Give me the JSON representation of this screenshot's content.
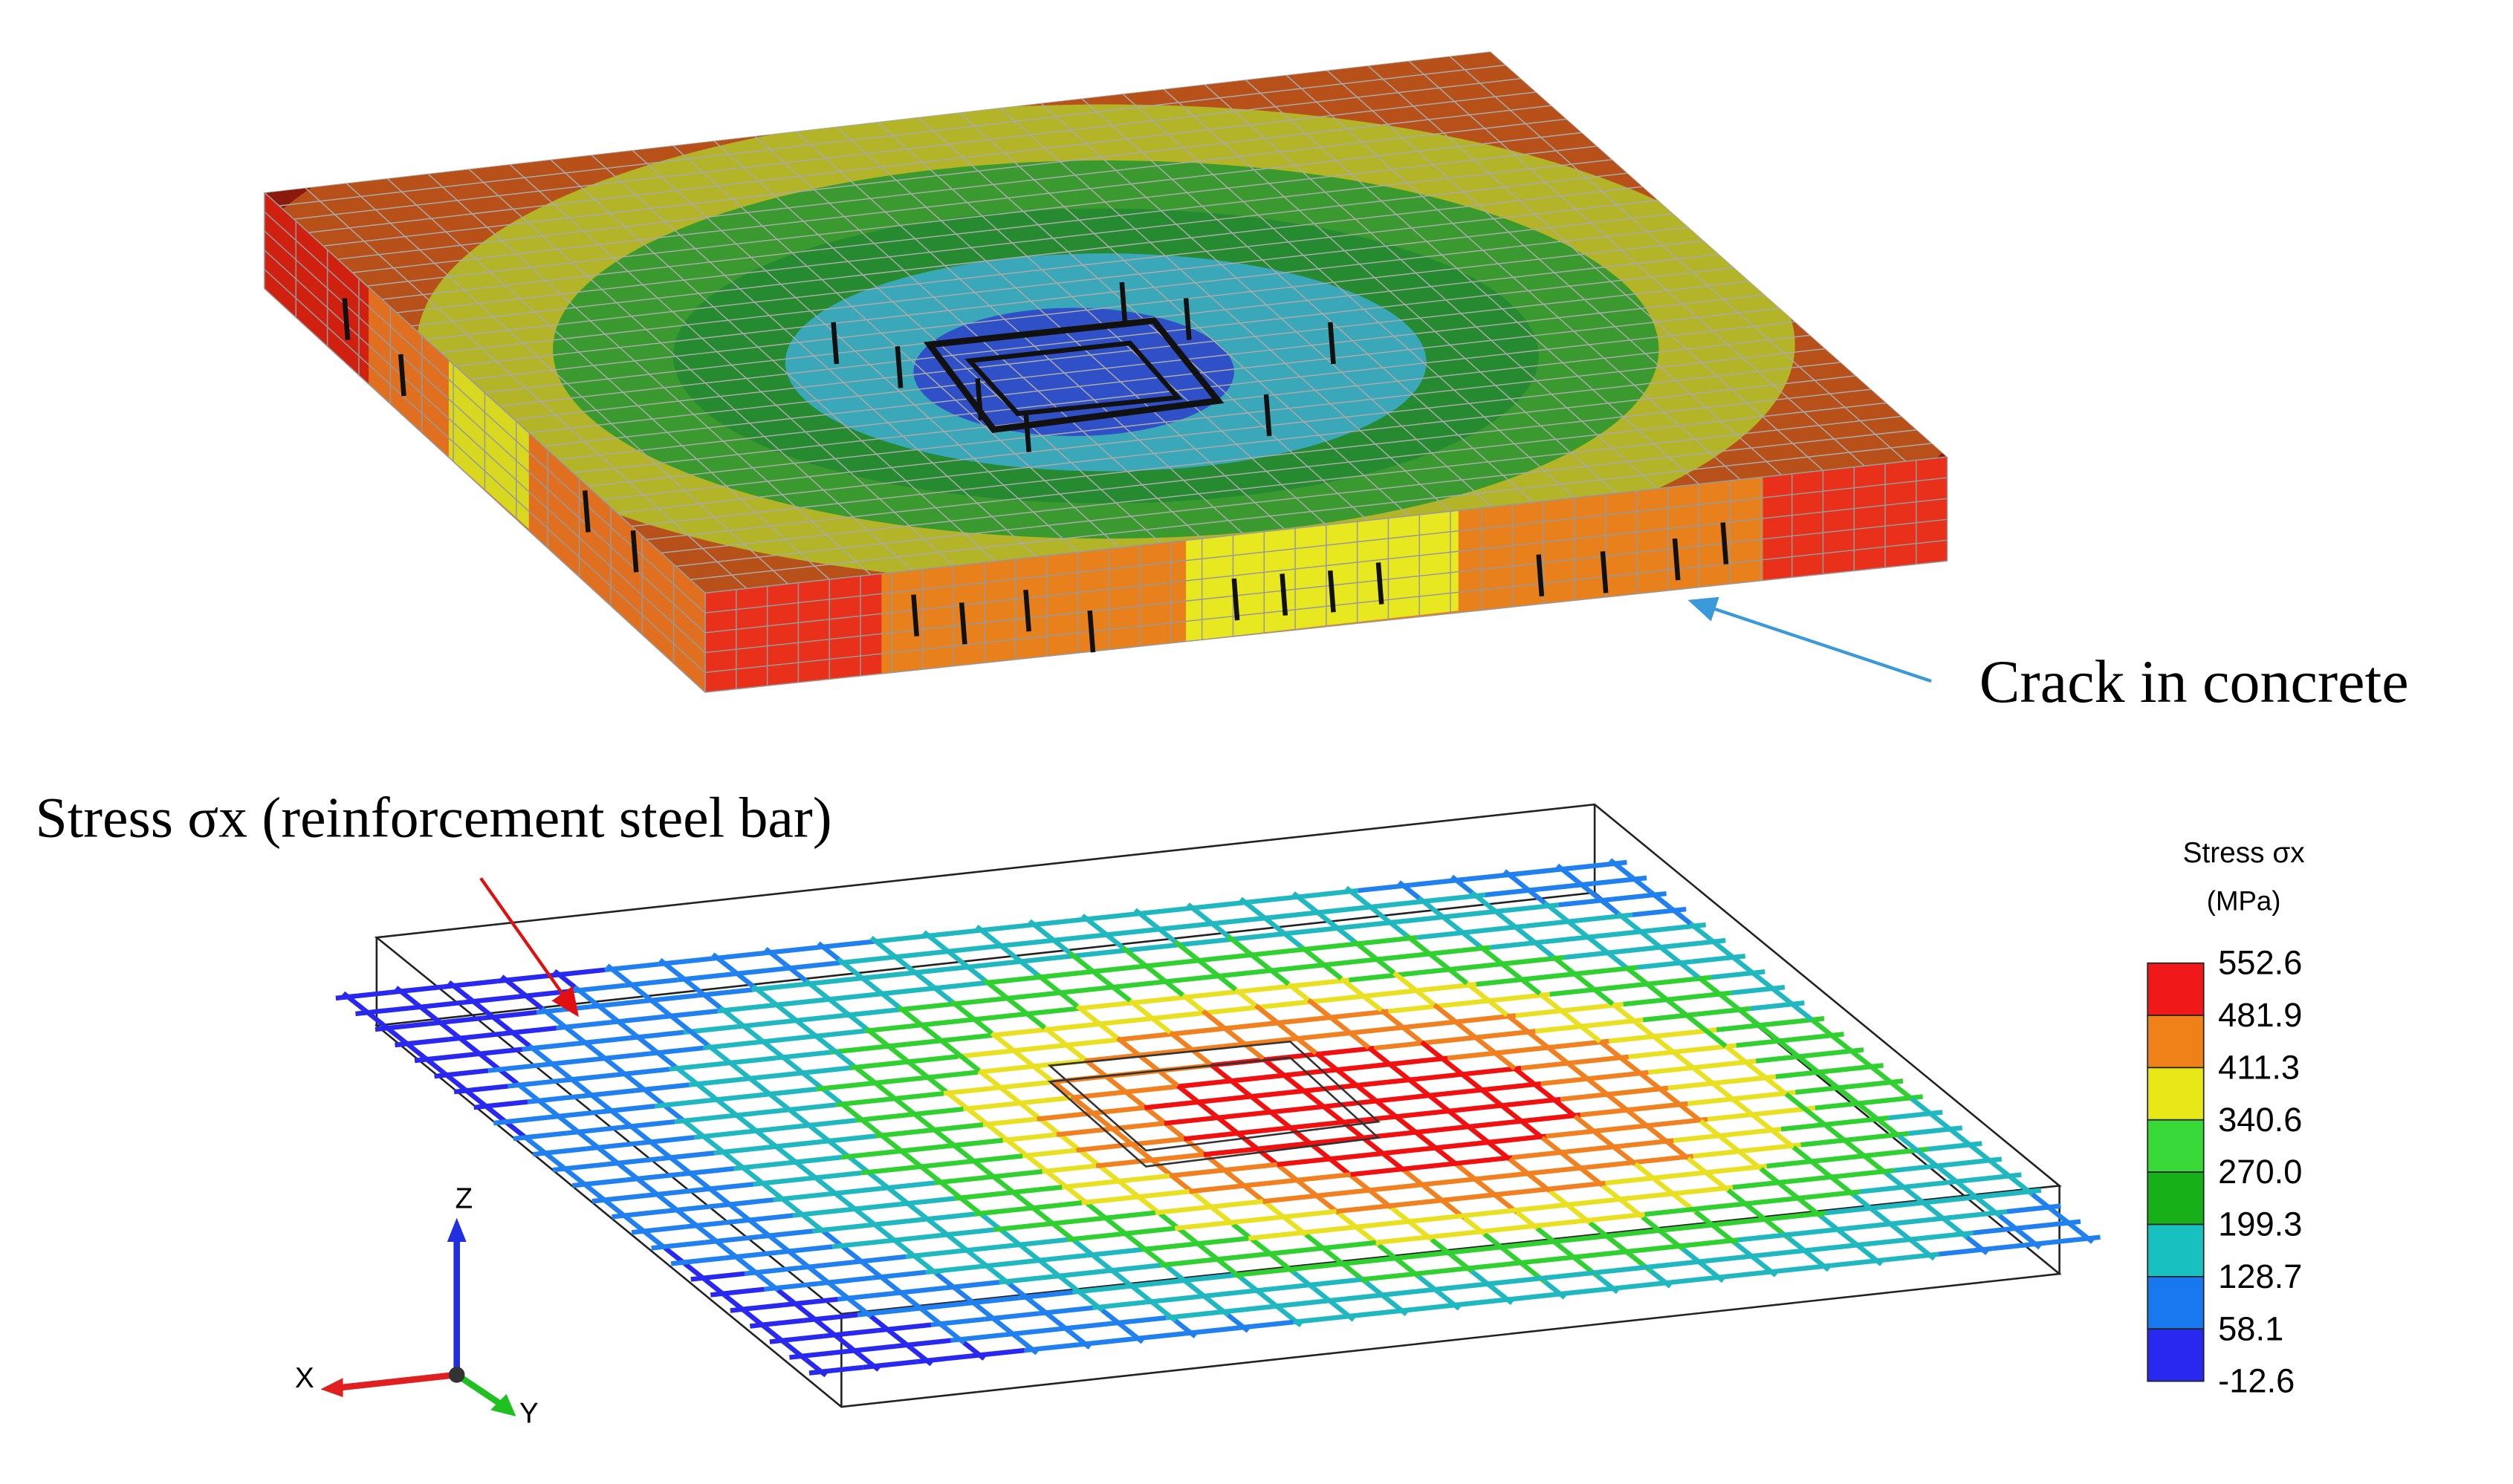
{
  "annotations": {
    "crack": "Crack in concrete",
    "stress": "Stress σx (reinforcement steel bar)"
  },
  "legend": {
    "title": "Stress σx",
    "unit": "(MPa)",
    "labels": [
      "552.6",
      "481.9",
      "411.3",
      "340.6",
      "270.0",
      "199.3",
      "128.7",
      "58.1",
      "-12.6"
    ]
  },
  "axes": {
    "z": "Z",
    "x": "X",
    "y": "Y"
  }
}
